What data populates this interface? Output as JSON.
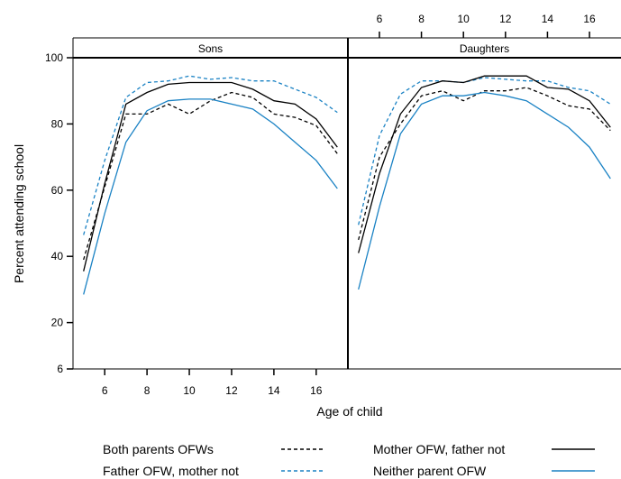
{
  "chart_data": {
    "type": "line",
    "xlabel": "Age of child",
    "ylabel": "Percent attending school",
    "x": [
      5,
      6,
      7,
      8,
      9,
      10,
      11,
      12,
      13,
      14,
      15,
      16,
      17
    ],
    "x_ticks": [
      6,
      8,
      10,
      12,
      14,
      16
    ],
    "x_tick_labels": [
      "6",
      "8",
      "10",
      "12",
      "14",
      "16"
    ],
    "xlim": [
      4.5,
      17.5
    ],
    "y_ticks": [
      6,
      20,
      40,
      60,
      80,
      100
    ],
    "y_tick_labels": [
      "6",
      "20",
      "40",
      "60",
      "80",
      "100"
    ],
    "ylim": [
      6,
      100
    ],
    "panels": [
      {
        "title": "Sons",
        "series": [
          {
            "key": "both",
            "values": [
              39,
              61,
              83,
              83,
              86,
              83,
              87,
              89.5,
              88,
              83,
              82,
              79.5,
              71
            ]
          },
          {
            "key": "father",
            "values": [
              46.5,
              69,
              88,
              92.5,
              93,
              94.5,
              93.5,
              94,
              93,
              93,
              90.5,
              88,
              83.5
            ]
          },
          {
            "key": "mother",
            "values": [
              35.5,
              62,
              86,
              89.5,
              92,
              92.5,
              92.5,
              92.5,
              90.5,
              87,
              86,
              81.5,
              73
            ]
          },
          {
            "key": "neither",
            "values": [
              28.5,
              53,
              74.5,
              84,
              87,
              87.5,
              87.5,
              86,
              84.5,
              80,
              74.5,
              69,
              60.5
            ]
          }
        ]
      },
      {
        "title": "Daughters",
        "series": [
          {
            "key": "both",
            "values": [
              45,
              70,
              80,
              88.5,
              90,
              87,
              90,
              90,
              91,
              88.5,
              85.5,
              84.5,
              78
            ]
          },
          {
            "key": "father",
            "values": [
              49.5,
              76.5,
              89,
              93,
              93,
              92.5,
              94,
              93.5,
              93,
              93,
              91,
              90,
              86
            ]
          },
          {
            "key": "mother",
            "values": [
              41,
              65,
              83,
              91,
              93,
              92.5,
              94.5,
              94.5,
              94.5,
              91,
              90.5,
              87,
              79
            ]
          },
          {
            "key": "neither",
            "values": [
              30,
              55,
              77,
              86,
              88.5,
              88.5,
              89.5,
              88.5,
              87,
              83,
              79,
              73,
              63.5
            ]
          }
        ]
      }
    ],
    "legend": {
      "placement": "bottom",
      "entries": [
        {
          "key": "both",
          "name": "Both parents OFWs",
          "color": "#000000",
          "dashed": true
        },
        {
          "key": "father",
          "name": "Father OFW, mother not",
          "color": "#1a82c4",
          "dashed": true
        },
        {
          "key": "mother",
          "name": "Mother OFW, father not",
          "color": "#000000",
          "dashed": false
        },
        {
          "key": "neither",
          "name": "Neither parent OFW",
          "color": "#1a82c4",
          "dashed": false
        }
      ]
    }
  }
}
